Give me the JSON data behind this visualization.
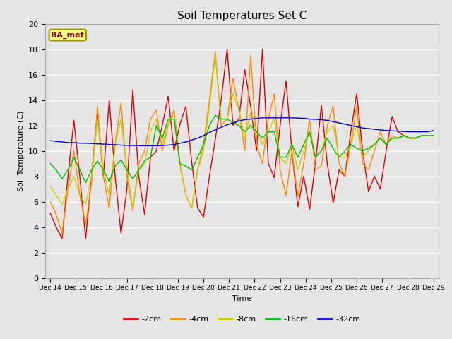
{
  "title": "Soil Temperatures Set C",
  "xlabel": "Time",
  "ylabel": "Soil Temperature (C)",
  "ylim": [
    0,
    20
  ],
  "annotation": "BA_met",
  "x_labels": [
    "Dec 14",
    "Dec 15",
    "Dec 16",
    "Dec 17",
    "Dec 18",
    "Dec 19",
    "Dec 20",
    "Dec 21",
    "Dec 22",
    "Dec 23",
    "Dec 24",
    "Dec 25",
    "Dec 26",
    "Dec 27",
    "Dec 28",
    "Dec 29"
  ],
  "colors": {
    "-2cm": "#dd0000",
    "-4cm": "#ff8800",
    "-8cm": "#cccc00",
    "-16cm": "#00bb00",
    "-32cm": "#0000cc"
  },
  "n_per_day": 6,
  "series": {
    "-2cm": [
      5.1,
      4.0,
      3.1,
      8.0,
      12.4,
      8.0,
      3.1,
      8.0,
      13.0,
      8.0,
      14.0,
      8.0,
      3.5,
      7.0,
      14.8,
      8.0,
      5.0,
      9.5,
      10.0,
      12.0,
      14.3,
      10.0,
      12.1,
      13.5,
      9.1,
      5.5,
      4.8,
      8.0,
      10.9,
      14.0,
      18.0,
      12.0,
      12.5,
      16.4,
      13.5,
      10.0,
      18.0,
      9.0,
      7.9,
      12.0,
      15.5,
      10.0,
      5.6,
      8.0,
      5.4,
      9.0,
      13.6,
      9.0,
      5.9,
      8.5,
      8.0,
      11.5,
      14.5,
      10.0,
      6.8,
      8.0,
      7.0,
      10.0,
      12.7,
      11.5,
      11.2,
      11.0,
      11.0,
      11.2,
      11.2,
      11.2
    ],
    "-4cm": [
      6.0,
      5.0,
      3.5,
      7.0,
      10.0,
      6.5,
      4.2,
      7.5,
      13.5,
      8.0,
      5.5,
      10.5,
      13.8,
      8.0,
      5.3,
      9.0,
      10.0,
      12.5,
      13.2,
      10.0,
      12.0,
      13.2,
      9.0,
      6.5,
      5.5,
      8.5,
      10.5,
      14.0,
      17.8,
      12.0,
      12.5,
      15.7,
      13.2,
      10.0,
      17.5,
      10.5,
      9.0,
      12.5,
      14.5,
      8.5,
      6.5,
      10.0,
      6.4,
      9.0,
      12.5,
      8.5,
      8.8,
      12.0,
      13.5,
      9.0,
      8.0,
      10.5,
      13.5,
      9.0,
      8.5,
      10.0,
      11.5,
      10.5,
      11.2,
      11.0,
      11.2,
      11.0,
      11.0,
      11.2,
      11.2,
      11.2
    ],
    "-8cm": [
      7.2,
      6.5,
      5.8,
      7.0,
      8.0,
      6.5,
      5.8,
      8.0,
      12.5,
      8.5,
      6.5,
      10.5,
      12.5,
      8.5,
      5.5,
      8.5,
      9.0,
      11.5,
      12.5,
      10.5,
      12.3,
      12.8,
      8.8,
      6.5,
      5.5,
      8.5,
      10.0,
      13.5,
      17.5,
      12.5,
      12.5,
      14.5,
      13.3,
      11.0,
      13.0,
      11.5,
      10.5,
      11.5,
      12.5,
      9.5,
      9.0,
      10.5,
      8.5,
      10.0,
      11.5,
      9.5,
      10.0,
      11.5,
      12.0,
      9.5,
      9.5,
      10.5,
      12.0,
      9.5,
      10.0,
      10.5,
      11.0,
      10.5,
      11.0,
      11.0,
      11.2,
      11.0,
      11.0,
      11.2,
      11.2,
      11.2
    ],
    "-16cm": [
      9.0,
      8.5,
      7.8,
      8.5,
      9.5,
      8.5,
      7.5,
      8.5,
      9.2,
      8.5,
      7.6,
      8.8,
      9.3,
      8.5,
      7.8,
      8.5,
      9.2,
      9.5,
      12.0,
      11.0,
      12.5,
      12.5,
      9.0,
      8.8,
      8.5,
      9.5,
      10.5,
      12.0,
      12.8,
      12.5,
      12.5,
      12.2,
      12.0,
      11.5,
      12.0,
      11.5,
      11.0,
      11.5,
      11.5,
      9.5,
      9.5,
      10.5,
      9.5,
      10.5,
      11.5,
      9.5,
      10.0,
      11.0,
      10.2,
      9.5,
      10.0,
      10.5,
      10.2,
      10.0,
      10.2,
      10.5,
      11.0,
      10.5,
      11.0,
      11.0,
      11.2,
      11.0,
      11.0,
      11.2,
      11.2,
      11.2
    ],
    "-32cm": [
      10.8,
      10.75,
      10.7,
      10.65,
      10.65,
      10.6,
      10.6,
      10.58,
      10.55,
      10.53,
      10.5,
      10.48,
      10.45,
      10.43,
      10.42,
      10.41,
      10.4,
      10.4,
      10.4,
      10.42,
      10.45,
      10.5,
      10.6,
      10.7,
      10.85,
      11.0,
      11.2,
      11.45,
      11.65,
      11.85,
      12.05,
      12.2,
      12.35,
      12.45,
      12.5,
      12.55,
      12.6,
      12.6,
      12.6,
      12.6,
      12.6,
      12.6,
      12.58,
      12.56,
      12.5,
      12.48,
      12.45,
      12.4,
      12.3,
      12.2,
      12.1,
      12.0,
      11.9,
      11.8,
      11.75,
      11.7,
      11.65,
      11.6,
      11.58,
      11.55,
      11.52,
      11.5,
      11.5,
      11.5,
      11.5,
      11.6
    ]
  },
  "background_color": "#e5e5e5",
  "plot_bg_color": "#e5e5e5",
  "grid_color": "#ffffff",
  "title_fontsize": 11,
  "legend_fontsize": 8
}
